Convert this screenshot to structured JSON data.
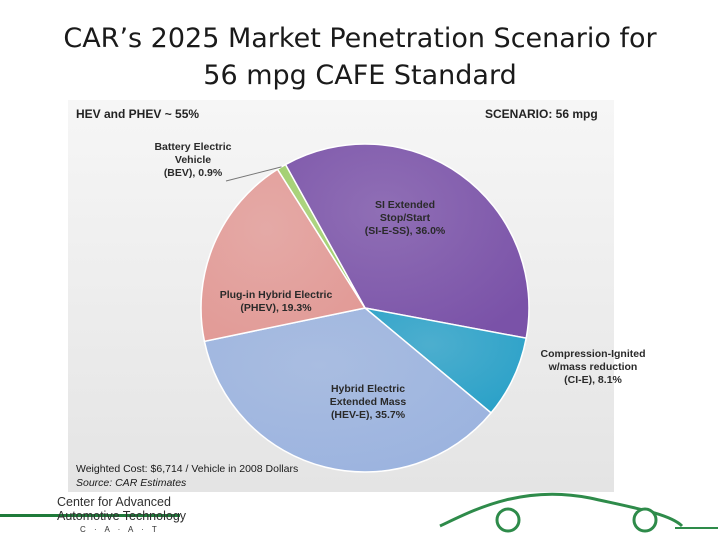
{
  "page": {
    "title_line1": "CAR’s 2025 Market Penetration Scenario for",
    "title_line2": "56 mpg CAFE Standard"
  },
  "panel": {
    "top_left_label": "HEV and PHEV ~ 55%",
    "top_right_label": "SCENARIO: 56 mpg",
    "footnote_cost": "Weighted Cost: $6,714 / Vehicle in 2008 Dollars",
    "footnote_source": "Source: CAR Estimates"
  },
  "logo": {
    "line1": "Center for Advanced",
    "line2": "Automotive Technology",
    "line3": "C · A · A · T",
    "brand_color": "#1f7a3a"
  },
  "chart_data": {
    "type": "pie",
    "slices": [
      {
        "label_lines": [
          "SI Extended",
          "Stop/Start",
          "(SI-E-SS), 36.0%"
        ],
        "value": 36.0,
        "color": "#7a52a8"
      },
      {
        "label_lines": [
          "Compression-Ignited",
          "w/mass reduction",
          "(CI-E), 8.1%"
        ],
        "value": 8.1,
        "color": "#2aa1c8"
      },
      {
        "label_lines": [
          "Hybrid Electric",
          "Extended Mass",
          "(HEV-E), 35.7%"
        ],
        "value": 35.7,
        "color": "#9bb3df"
      },
      {
        "label_lines": [
          "Plug-in Hybrid Electric",
          "(PHEV), 19.3%"
        ],
        "value": 19.3,
        "color": "#e29a96"
      },
      {
        "label_lines": [
          "Battery Electric",
          "Vehicle",
          "(BEV), 0.9%"
        ],
        "value": 0.9,
        "color": "#9fce6a"
      }
    ]
  }
}
